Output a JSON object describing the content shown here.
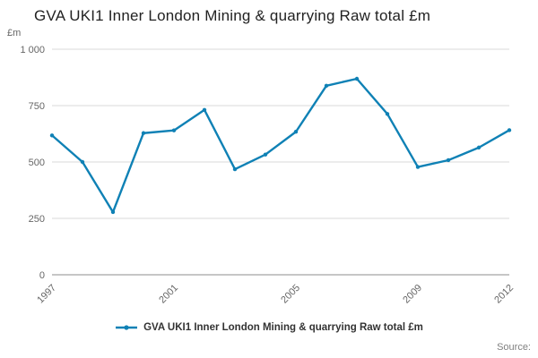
{
  "title": "GVA UKI1 Inner London Mining & quarrying Raw total £m",
  "y_axis_unit": "£m",
  "legend_label": "GVA UKI1 Inner London Mining & quarrying Raw total £m",
  "source_label": "Source:",
  "colors": {
    "line": "#0f81b5",
    "grid": "#d9d9d9",
    "axis": "#8c8c8c",
    "tick_text": "#666666",
    "title_text": "#222222"
  },
  "chart_data": {
    "type": "line",
    "title": "GVA UKI1 Inner London Mining & quarrying Raw total £m",
    "xlabel": "",
    "ylabel": "£m",
    "x": [
      1997,
      1998,
      1999,
      2000,
      2001,
      2002,
      2003,
      2004,
      2005,
      2006,
      2007,
      2008,
      2009,
      2010,
      2011,
      2012
    ],
    "values": [
      618,
      500,
      278,
      628,
      640,
      731,
      468,
      533,
      634,
      838,
      869,
      713,
      478,
      508,
      564,
      641
    ],
    "series_name": "GVA UKI1 Inner London Mining & quarrying Raw total £m",
    "ylim": [
      0,
      1000
    ],
    "yticks": [
      0,
      250,
      500,
      750,
      1000
    ],
    "ytick_labels": [
      "0",
      "250",
      "500",
      "750",
      "1 000"
    ],
    "xticks": [
      1997,
      2001,
      2005,
      2009,
      2012
    ],
    "grid": true,
    "legend_position": "bottom"
  }
}
